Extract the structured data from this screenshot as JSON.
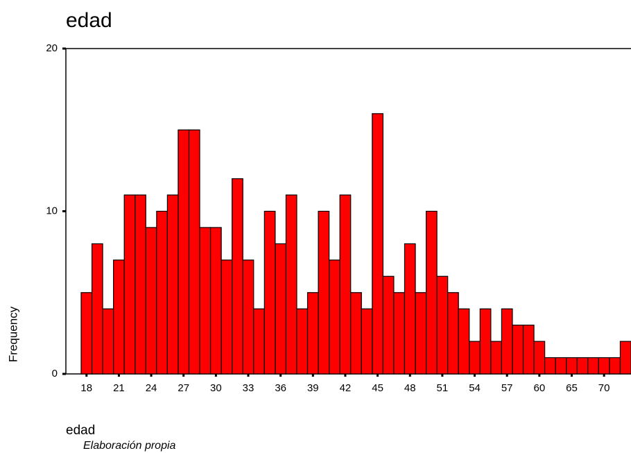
{
  "chart_data": {
    "type": "bar",
    "title": "edad",
    "x_label": "edad",
    "y_label": "Frequency",
    "note": "Elaboración propia",
    "categories": [
      "18",
      null,
      null,
      "21",
      null,
      null,
      "24",
      null,
      null,
      "27",
      null,
      null,
      "30",
      null,
      null,
      "33",
      null,
      null,
      "36",
      null,
      null,
      "39",
      null,
      null,
      "42",
      null,
      null,
      "45",
      null,
      null,
      "48",
      null,
      null,
      "51",
      null,
      null,
      "54",
      null,
      null,
      "57",
      null,
      null,
      "60",
      null,
      null,
      "65",
      null,
      null,
      "70",
      null,
      null
    ],
    "values": [
      5,
      8,
      4,
      7,
      11,
      11,
      9,
      10,
      11,
      15,
      15,
      9,
      9,
      7,
      12,
      7,
      4,
      10,
      8,
      11,
      4,
      5,
      10,
      7,
      11,
      5,
      4,
      16,
      6,
      5,
      8,
      5,
      10,
      6,
      5,
      4,
      2,
      4,
      2,
      4,
      3,
      3,
      2,
      1,
      1,
      1,
      1,
      1,
      1,
      1,
      2
    ],
    "color": "#ff0000",
    "ylim": [
      0,
      20
    ],
    "yticks": [
      0,
      10,
      20
    ],
    "grid": false
  }
}
